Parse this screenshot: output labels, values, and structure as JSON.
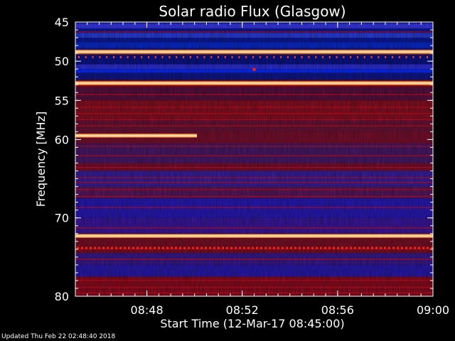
{
  "chart_data": {
    "type": "heatmap",
    "title": "Solar radio Flux (Glasgow)",
    "ylabel": "Frequency [MHz]",
    "xlabel": "Start Time (12-Mar-17 08:45:00)",
    "x_range": [
      "08:45:00",
      "09:00:00"
    ],
    "y_range_mhz": [
      45,
      80
    ],
    "y_inverted": true,
    "x_ticks": [
      "08:48",
      "08:52",
      "08:56",
      "09:00"
    ],
    "x_tick_values_min": [
      3,
      7,
      11,
      15
    ],
    "y_ticks": [
      "45",
      "50",
      "55",
      "60",
      "70",
      "80"
    ],
    "y_tick_values_mhz": [
      45,
      50,
      55,
      60,
      70,
      80
    ],
    "colormap": "blue-red-yellow",
    "colors": {
      "low": "#1a1aa8",
      "mid": "#c4102a",
      "high": "#ffb060",
      "background": "#000000",
      "text": "#ffffff"
    },
    "features": [
      {
        "name": "bright band",
        "freq_mhz": 48.8,
        "start_min": 0,
        "end_min": 15
      },
      {
        "name": "bright band",
        "freq_mhz": 52.8,
        "start_min": 0,
        "end_min": 15
      },
      {
        "name": "bright band",
        "freq_mhz": 59.5,
        "start_min": 0,
        "end_min": 5.1
      },
      {
        "name": "bright band",
        "freq_mhz": 72.3,
        "start_min": 0,
        "end_min": 15
      }
    ]
  },
  "footer": {
    "updated": "Updated Thu Feb 22 02:48:40 2018"
  }
}
